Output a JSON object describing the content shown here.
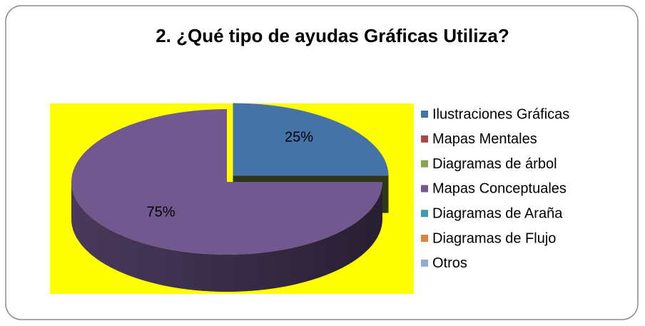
{
  "chart_data": {
    "type": "pie",
    "title": "2. ¿Qué tipo de ayudas Gráficas Utiliza?",
    "categories": [
      "Ilustraciones Gráficas",
      "Mapas Mentales",
      "Diagramas de árbol",
      "Mapas Conceptuales",
      "Diagramas de Araña",
      "Diagramas de Flujo",
      "Otros"
    ],
    "values": [
      25,
      0,
      0,
      75,
      0,
      0,
      0
    ],
    "value_labels": [
      "25%",
      null,
      null,
      "75%",
      null,
      null,
      null
    ],
    "colors": [
      "#4572a7",
      "#aa4643",
      "#89a54e",
      "#71588f",
      "#4198af",
      "#db843d",
      "#93a9cf"
    ],
    "plot_background": "#ffff00",
    "legend": "right"
  }
}
